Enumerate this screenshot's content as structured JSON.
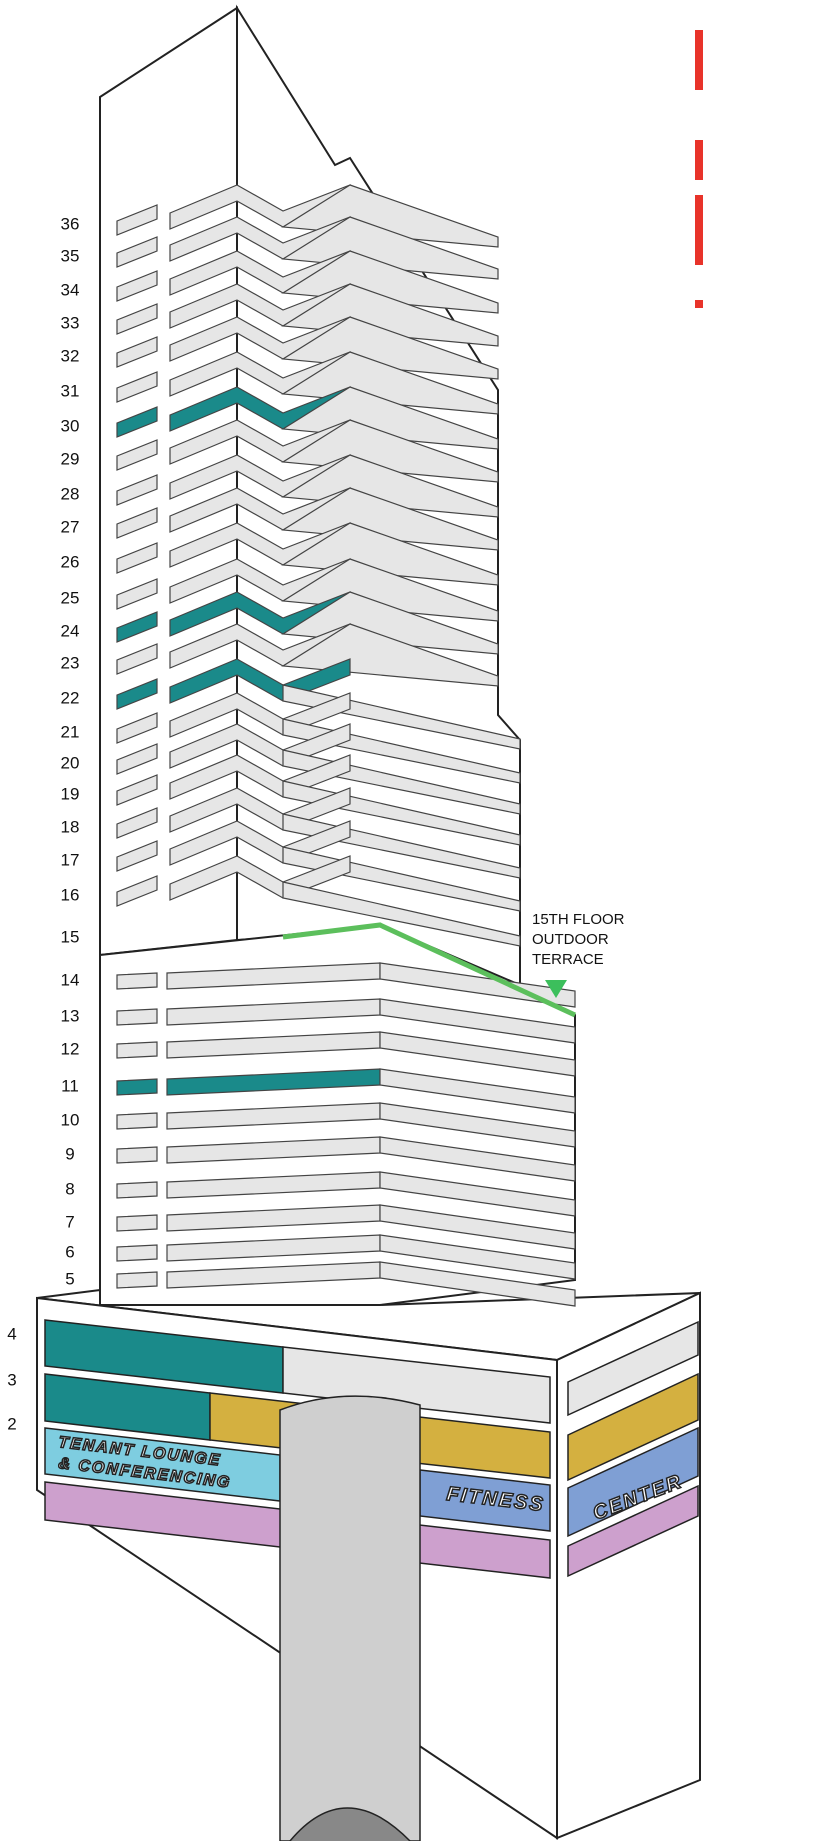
{
  "floors": [
    "36",
    "35",
    "34",
    "33",
    "32",
    "31",
    "30",
    "29",
    "28",
    "27",
    "26",
    "25",
    "24",
    "23",
    "22",
    "21",
    "20",
    "19",
    "18",
    "17",
    "16",
    "15",
    "14",
    "13",
    "12",
    "11",
    "10",
    "9",
    "8",
    "7",
    "6",
    "5",
    "4",
    "3",
    "2"
  ],
  "terrace_label": [
    "15TH FLOOR",
    "OUTDOOR",
    "TERRACE"
  ],
  "signs": {
    "lounge": [
      "TENANT LOUNGE",
      "& CONFERENCING"
    ],
    "fitness": "FITNESS",
    "center": "CENTER"
  }
}
